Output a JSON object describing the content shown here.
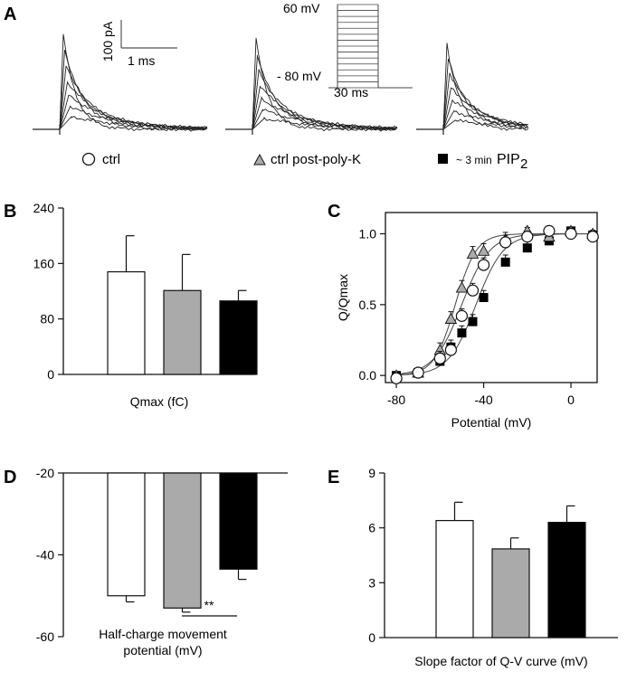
{
  "panels": {
    "A": "A",
    "B": "B",
    "C": "C",
    "D": "D",
    "E": "E"
  },
  "traces": {
    "scale_current": "100 pA",
    "scale_time": "1 ms",
    "protocol_top": "60 mV",
    "protocol_bottom": "- 80 mV",
    "protocol_time": "30 ms"
  },
  "legend": {
    "ctrl": "ctrl",
    "post_polyk": "ctrl post-poly-K",
    "pip2_prefix": "~ 3 min",
    "pip2_main": "PIP",
    "pip2_sub": "2"
  },
  "colors": {
    "ctrl": "#ffffff",
    "post_polyk": "#aaaaaa",
    "pip2": "#000000",
    "stroke": "#111111"
  },
  "chart_data": [
    {
      "id": "B",
      "type": "bar",
      "categories": [
        "ctrl",
        "ctrl post-poly-K",
        "~ 3 min PIP2"
      ],
      "values": [
        148,
        121,
        106
      ],
      "errors": [
        52,
        52,
        15
      ],
      "ylim": [
        0,
        240
      ],
      "yticks": [
        "0",
        "80",
        "160",
        "240"
      ],
      "xlabel": "Qmax (fC)"
    },
    {
      "id": "C",
      "type": "scatter",
      "xlabel": "Potential (mV)",
      "ylabel": "Q/Qmax",
      "xlim": [
        -85,
        12
      ],
      "ylim": [
        -0.05,
        1.15
      ],
      "xticks": [
        "-80",
        "-40",
        "0"
      ],
      "yticks": [
        "0.0",
        "0.5",
        "1.0"
      ],
      "x": [
        -80,
        -70,
        -60,
        -55,
        -50,
        -45,
        -40,
        -30,
        -20,
        -10,
        0,
        10
      ],
      "series": [
        {
          "name": "ctrl",
          "marker": "circle",
          "values": [
            -0.02,
            0.02,
            0.12,
            0.18,
            0.42,
            0.6,
            0.78,
            0.94,
            0.98,
            1.02,
            1.0,
            0.98
          ],
          "v_half": -50.0,
          "slope": 6.4
        },
        {
          "name": "ctrl post-poly-K",
          "marker": "triangle",
          "values": [
            0.0,
            0.02,
            0.18,
            0.4,
            0.62,
            0.86,
            0.88,
            0.96,
            1.02,
            0.98,
            1.02,
            1.0
          ],
          "v_half": -53.0,
          "slope": 4.8
        },
        {
          "name": "~ 3 min PIP2",
          "marker": "square",
          "values": [
            0.0,
            0.02,
            0.1,
            0.2,
            0.3,
            0.38,
            0.55,
            0.8,
            0.9,
            0.95,
            1.02,
            0.99
          ],
          "v_half": -43.5,
          "slope": 6.3
        }
      ]
    },
    {
      "id": "D",
      "type": "bar",
      "categories": [
        "ctrl",
        "ctrl post-poly-K",
        "~ 3 min PIP2"
      ],
      "values": [
        -50.0,
        -53.0,
        -43.5
      ],
      "errors": [
        1.5,
        1.0,
        2.5
      ],
      "ylim": [
        -60,
        -20
      ],
      "yticks": [
        "-20",
        "-40",
        "-60"
      ],
      "significance": "**",
      "xlabel_line1": "Half-charge movement",
      "xlabel_line2": "potential (mV)"
    },
    {
      "id": "E",
      "type": "bar",
      "categories": [
        "ctrl",
        "ctrl post-poly-K",
        "~ 3 min PIP2"
      ],
      "values": [
        6.4,
        4.85,
        6.3
      ],
      "errors": [
        1.0,
        0.6,
        0.9
      ],
      "ylim": [
        0,
        9
      ],
      "yticks": [
        "0",
        "3",
        "6",
        "9"
      ],
      "xlabel": "Slope factor of Q-V curve (mV)"
    }
  ]
}
